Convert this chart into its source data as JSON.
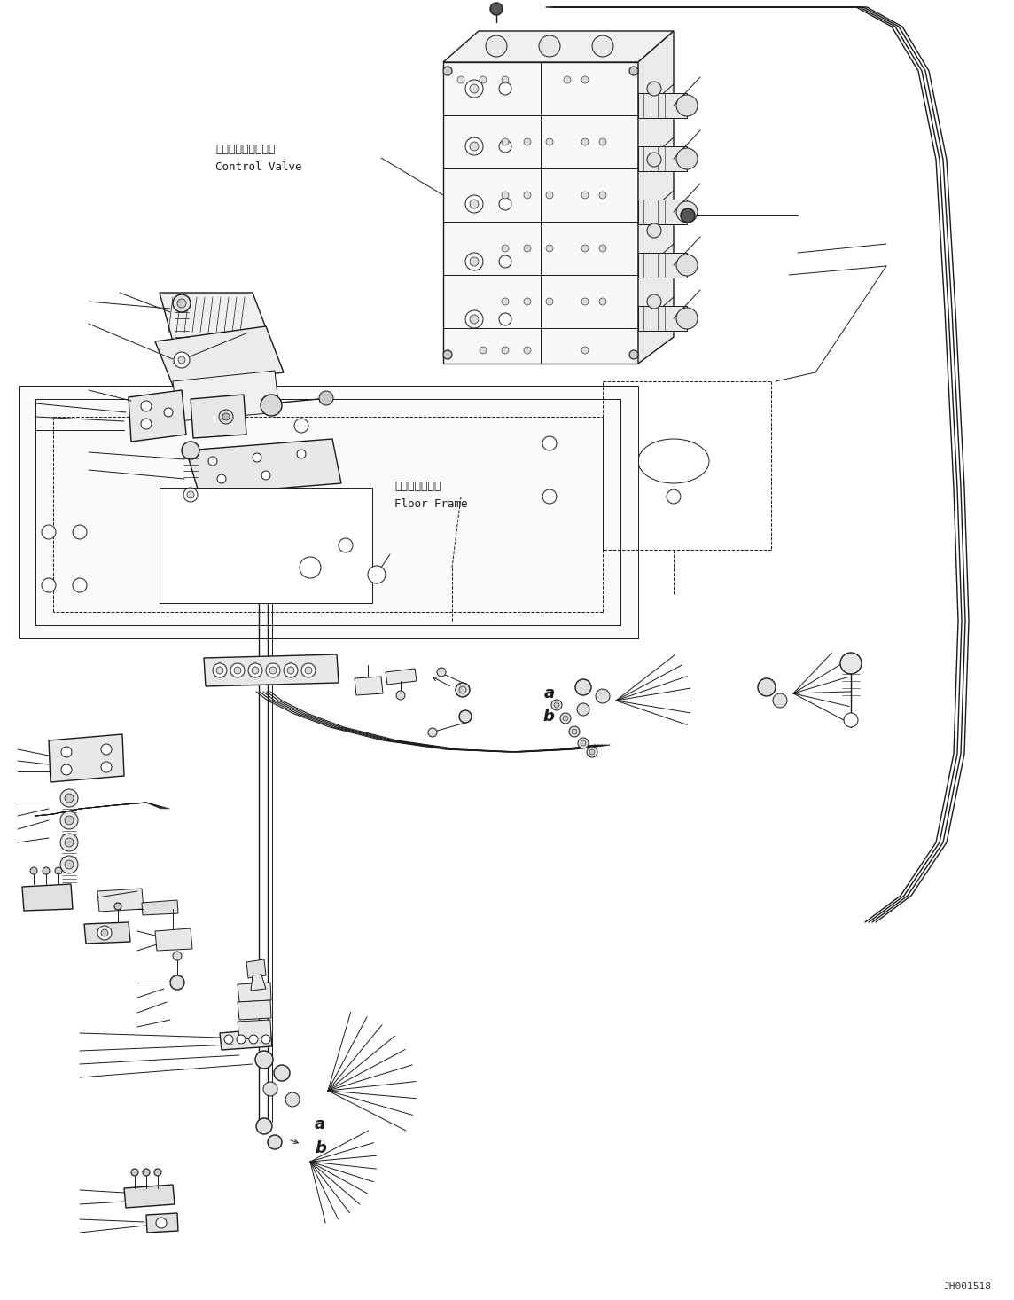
{
  "bg_color": "#ffffff",
  "line_color": "#1a1a1a",
  "fig_width": 11.44,
  "fig_height": 14.66,
  "dpi": 100,
  "label_control_valve_jp": "コントロールバルブ",
  "label_control_valve_en": "Control Valve",
  "label_floor_frame_jp": "フロアフレーム",
  "label_floor_frame_en": "Floor Frame",
  "label_a": "a",
  "label_b": "b",
  "watermark": "JH001518",
  "lw_thin": 0.7,
  "lw_med": 1.0,
  "lw_thick": 1.5,
  "lw_cable": 1.8
}
